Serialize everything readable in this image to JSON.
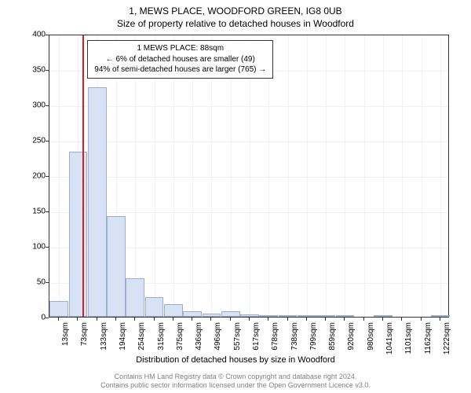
{
  "title": {
    "line1": "1, MEWS PLACE, WOODFORD GREEN, IG8 0UB",
    "line2": "Size of property relative to detached houses in Woodford"
  },
  "chart": {
    "type": "histogram",
    "ylabel": "Number of detached properties",
    "xlabel": "Distribution of detached houses by size in Woodford",
    "ylim": [
      0,
      400
    ],
    "ytick_step": 50,
    "yticks": [
      0,
      50,
      100,
      150,
      200,
      250,
      300,
      350,
      400
    ],
    "xticks": [
      "13sqm",
      "73sqm",
      "133sqm",
      "194sqm",
      "254sqm",
      "315sqm",
      "375sqm",
      "436sqm",
      "496sqm",
      "557sqm",
      "617sqm",
      "678sqm",
      "738sqm",
      "799sqm",
      "859sqm",
      "920sqm",
      "980sqm",
      "1041sqm",
      "1101sqm",
      "1162sqm",
      "1222sqm"
    ],
    "bars": [
      22,
      233,
      325,
      142,
      55,
      28,
      18,
      8,
      5,
      8,
      3,
      2,
      2,
      2,
      1,
      1,
      0,
      1,
      0,
      0,
      1
    ],
    "bar_fill": "#d7e2f4",
    "bar_border": "#9aaed1",
    "grid_color": "#eef1f6",
    "axis_color": "#333333",
    "background": "#ffffff",
    "reference_line": {
      "value_sqm": 88,
      "color": "#d42020"
    },
    "callout": {
      "line1": "1 MEWS PLACE: 88sqm",
      "line2": "← 6% of detached houses are smaller (49)",
      "line3": "94% of semi-detached houses are larger (765) →"
    }
  },
  "footer": {
    "line1": "Contains HM Land Registry data © Crown copyright and database right 2024.",
    "line2": "Contains public sector information licensed under the Open Government Licence v3.0."
  }
}
